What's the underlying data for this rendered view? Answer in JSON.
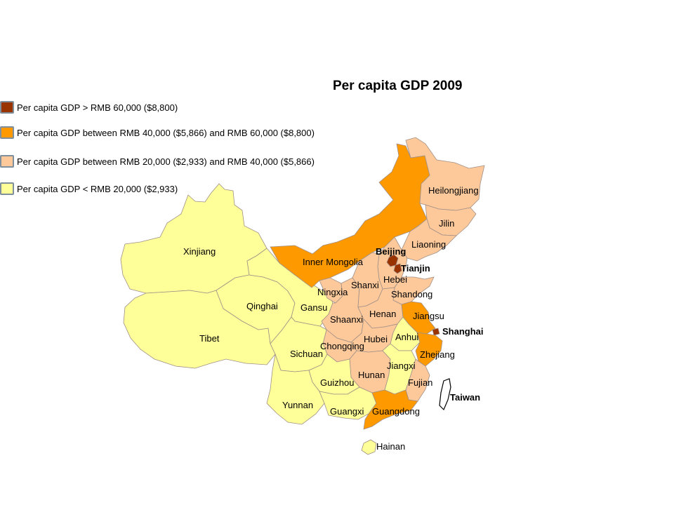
{
  "title": "Per capita GDP 2009",
  "colors": {
    "tier1": "#993300",
    "tier2": "#ff9900",
    "tier3": "#fdc99b",
    "tier4": "#ffff99",
    "taiwan": "#ffffff"
  },
  "legend": [
    {
      "tier": "tier1",
      "label": "Per capita GDP > RMB 60,000 ($8,800)"
    },
    {
      "tier": "tier2",
      "label": "Per capita GDP between RMB 40,000 ($5,866) and RMB 60,000 ($8,800)"
    },
    {
      "tier": "tier3",
      "label": "Per capita GDP between RMB 20,000 ($2,933) and RMB 40,000 ($5,866)"
    },
    {
      "tier": "tier4",
      "label": "Per capita GDP < RMB 20,000 ($2,933)"
    }
  ],
  "provinces": [
    {
      "name": "Heilongjiang",
      "tier": "tier3"
    },
    {
      "name": "Jilin",
      "tier": "tier3"
    },
    {
      "name": "Liaoning",
      "tier": "tier3"
    },
    {
      "name": "Beijing",
      "tier": "tier1"
    },
    {
      "name": "Tianjin",
      "tier": "tier1"
    },
    {
      "name": "Inner Mongolia",
      "tier": "tier2"
    },
    {
      "name": "Hebei",
      "tier": "tier3"
    },
    {
      "name": "Shanxi",
      "tier": "tier3"
    },
    {
      "name": "Shandong",
      "tier": "tier3"
    },
    {
      "name": "Ningxia",
      "tier": "tier3"
    },
    {
      "name": "Xinjiang",
      "tier": "tier4"
    },
    {
      "name": "Qinghai",
      "tier": "tier4"
    },
    {
      "name": "Gansu",
      "tier": "tier4"
    },
    {
      "name": "Shaanxi",
      "tier": "tier3"
    },
    {
      "name": "Henan",
      "tier": "tier3"
    },
    {
      "name": "Jiangsu",
      "tier": "tier2"
    },
    {
      "name": "Shanghai",
      "tier": "tier1"
    },
    {
      "name": "Tibet",
      "tier": "tier4"
    },
    {
      "name": "Sichuan",
      "tier": "tier4"
    },
    {
      "name": "Chongqing",
      "tier": "tier3"
    },
    {
      "name": "Hubei",
      "tier": "tier3"
    },
    {
      "name": "Anhui",
      "tier": "tier4"
    },
    {
      "name": "Zhejiang",
      "tier": "tier2"
    },
    {
      "name": "Jiangxi",
      "tier": "tier4"
    },
    {
      "name": "Hunan",
      "tier": "tier3"
    },
    {
      "name": "Guizhou",
      "tier": "tier4"
    },
    {
      "name": "Fujian",
      "tier": "tier3"
    },
    {
      "name": "Taiwan",
      "tier": "taiwan"
    },
    {
      "name": "Yunnan",
      "tier": "tier4"
    },
    {
      "name": "Guangxi",
      "tier": "tier4"
    },
    {
      "name": "Guangdong",
      "tier": "tier2"
    },
    {
      "name": "Hainan",
      "tier": "tier4"
    }
  ]
}
